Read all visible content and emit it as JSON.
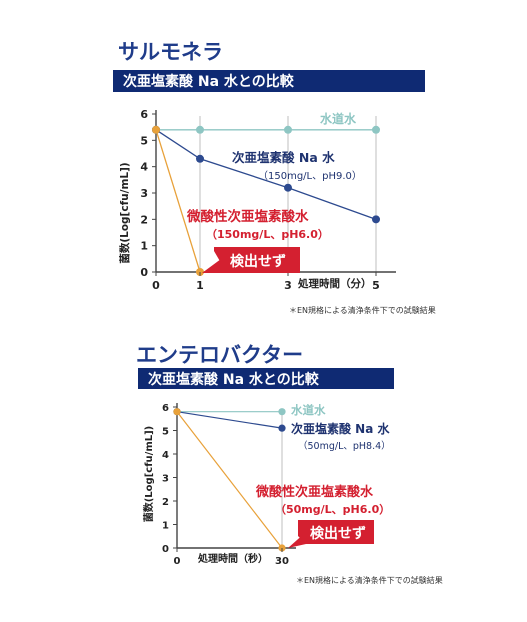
{
  "colors": {
    "navy": "#0f2a73",
    "title_blue": "#1f3c8a",
    "tap_water": "#8ec6c3",
    "naclo": "#2d4a8f",
    "hocl": "#e8a13a",
    "red_label": "#d42030",
    "axis": "#444444",
    "grid": "#bfbfbf"
  },
  "charts": [
    {
      "section_title": "サルモネラ",
      "banner": "次亜塩素酸 Na 水との比較",
      "note": "＊EN規格による清浄条件下での試験結果",
      "badge": "検出せず",
      "ylabel": "菌数(Log[cfu/mL])",
      "xlabel": "処理時間（分）",
      "series_labels": {
        "tap": "水道水",
        "naclo_name": "次亜塩素酸 Na 水",
        "naclo_cond": "（150mg/L、pH9.0）",
        "hocl_name": "微酸性次亜塩素酸水",
        "hocl_cond": "（150mg/L、pH6.0）"
      }
    },
    {
      "section_title": "エンテロバクター",
      "banner": "次亜塩素酸 Na 水との比較",
      "note": "＊EN規格による清浄条件下での試験結果",
      "badge": "検出せず",
      "ylabel": "菌数(Log[cfu/mL])",
      "xlabel": "処理時間（秒）",
      "series_labels": {
        "tap": "水道水",
        "naclo_name": "次亜塩素酸 Na 水",
        "naclo_cond": "（50mg/L、pH8.4）",
        "hocl_name": "微酸性次亜塩素酸水",
        "hocl_cond": "（50mg/L、pH6.0）"
      }
    }
  ],
  "chart_data": [
    {
      "type": "line",
      "ylabel": "菌数(Log[cfu/mL])",
      "xlabel": "処理時間（分）",
      "xlim": [
        0,
        5
      ],
      "ylim": [
        0,
        6
      ],
      "x_ticks": [
        0,
        1,
        3,
        5
      ],
      "y_ticks": [
        0,
        1,
        2,
        3,
        4,
        5,
        6
      ],
      "series": [
        {
          "name": "水道水",
          "color": "#8ec6c3",
          "x": [
            0,
            1,
            3,
            5
          ],
          "y": [
            5.4,
            5.4,
            5.4,
            5.4
          ]
        },
        {
          "name": "次亜塩素酸 Na 水",
          "color": "#2d4a8f",
          "x": [
            0,
            1,
            3,
            5
          ],
          "y": [
            5.4,
            4.3,
            3.2,
            2.0
          ]
        },
        {
          "name": "微酸性次亜塩素酸水",
          "color": "#e8a13a",
          "x": [
            0,
            1
          ],
          "y": [
            5.4,
            0.0
          ]
        }
      ]
    },
    {
      "type": "line",
      "ylabel": "菌数(Log[cfu/mL])",
      "xlabel": "処理時間（秒）",
      "xlim": [
        0,
        30
      ],
      "ylim": [
        0,
        6
      ],
      "x_ticks": [
        0,
        30
      ],
      "y_ticks": [
        0,
        1,
        2,
        3,
        4,
        5,
        6
      ],
      "series": [
        {
          "name": "水道水",
          "color": "#8ec6c3",
          "x": [
            0,
            30
          ],
          "y": [
            5.8,
            5.8
          ]
        },
        {
          "name": "次亜塩素酸 Na 水",
          "color": "#2d4a8f",
          "x": [
            0,
            30
          ],
          "y": [
            5.8,
            5.1
          ]
        },
        {
          "name": "微酸性次亜塩素酸水",
          "color": "#e8a13a",
          "x": [
            0,
            30
          ],
          "y": [
            5.8,
            0.0
          ]
        }
      ]
    }
  ]
}
